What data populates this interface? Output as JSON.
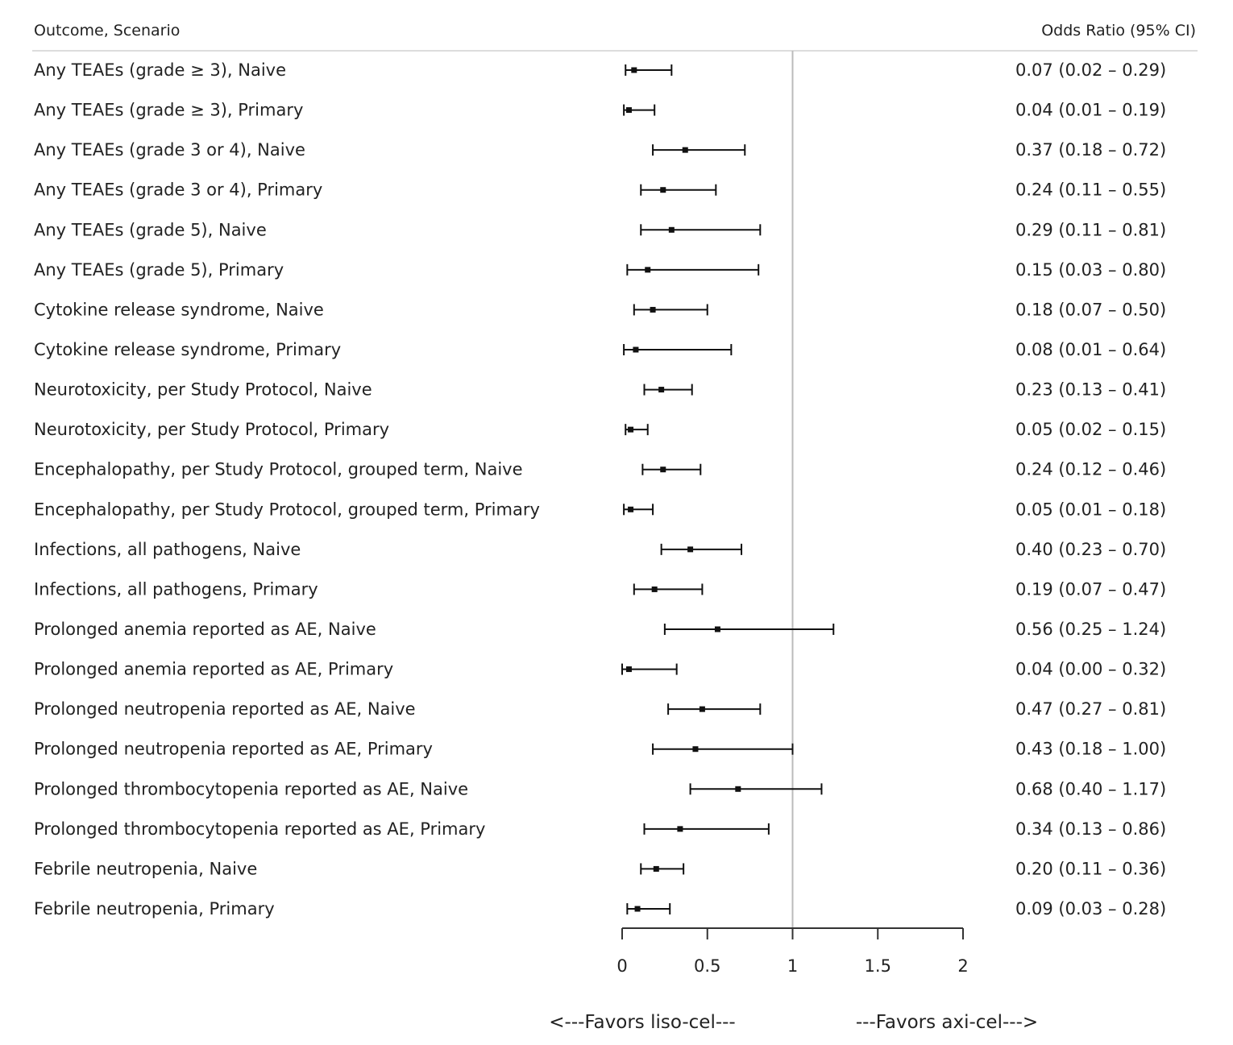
{
  "chart_data": {
    "type": "forest",
    "column_headers": {
      "left": "Outcome, Scenario",
      "right": "Odds Ratio (95% CI)"
    },
    "xlim": [
      0,
      2
    ],
    "xticks": [
      "0",
      "0.5",
      "1",
      "1.5",
      "2"
    ],
    "reference_line": 1,
    "favors": {
      "left": "<---Favors liso-cel---",
      "right": "---Favors axi-cel--->"
    },
    "rows": [
      {
        "label": "Any TEAEs (grade ≥ 3), Naive",
        "or": 0.07,
        "lo": 0.02,
        "hi": 0.29,
        "text": "0.07 (0.02 – 0.29)"
      },
      {
        "label": "Any TEAEs (grade ≥ 3), Primary",
        "or": 0.04,
        "lo": 0.01,
        "hi": 0.19,
        "text": "0.04 (0.01 – 0.19)"
      },
      {
        "label": "Any TEAEs (grade 3 or 4), Naive",
        "or": 0.37,
        "lo": 0.18,
        "hi": 0.72,
        "text": "0.37 (0.18 – 0.72)"
      },
      {
        "label": "Any TEAEs (grade 3 or 4), Primary",
        "or": 0.24,
        "lo": 0.11,
        "hi": 0.55,
        "text": "0.24 (0.11 – 0.55)"
      },
      {
        "label": "Any TEAEs (grade 5), Naive",
        "or": 0.29,
        "lo": 0.11,
        "hi": 0.81,
        "text": "0.29 (0.11 – 0.81)"
      },
      {
        "label": "Any TEAEs (grade 5), Primary",
        "or": 0.15,
        "lo": 0.03,
        "hi": 0.8,
        "text": "0.15 (0.03 – 0.80)"
      },
      {
        "label": "Cytokine release syndrome, Naive",
        "or": 0.18,
        "lo": 0.07,
        "hi": 0.5,
        "text": "0.18 (0.07 – 0.50)"
      },
      {
        "label": "Cytokine release syndrome, Primary",
        "or": 0.08,
        "lo": 0.01,
        "hi": 0.64,
        "text": "0.08 (0.01 – 0.64)"
      },
      {
        "label": "Neurotoxicity, per Study Protocol, Naive",
        "or": 0.23,
        "lo": 0.13,
        "hi": 0.41,
        "text": "0.23 (0.13 – 0.41)"
      },
      {
        "label": "Neurotoxicity, per Study Protocol, Primary",
        "or": 0.05,
        "lo": 0.02,
        "hi": 0.15,
        "text": "0.05 (0.02 – 0.15)"
      },
      {
        "label": "Encephalopathy, per Study Protocol, grouped term, Naive",
        "or": 0.24,
        "lo": 0.12,
        "hi": 0.46,
        "text": "0.24 (0.12 – 0.46)"
      },
      {
        "label": "Encephalopathy, per Study Protocol, grouped term, Primary",
        "or": 0.05,
        "lo": 0.01,
        "hi": 0.18,
        "text": "0.05 (0.01 – 0.18)"
      },
      {
        "label": "Infections, all pathogens, Naive",
        "or": 0.4,
        "lo": 0.23,
        "hi": 0.7,
        "text": "0.40 (0.23 – 0.70)"
      },
      {
        "label": "Infections, all pathogens, Primary",
        "or": 0.19,
        "lo": 0.07,
        "hi": 0.47,
        "text": "0.19 (0.07 – 0.47)"
      },
      {
        "label": "Prolonged anemia reported as AE, Naive",
        "or": 0.56,
        "lo": 0.25,
        "hi": 1.24,
        "text": "0.56 (0.25 – 1.24)"
      },
      {
        "label": "Prolonged anemia reported as AE, Primary",
        "or": 0.04,
        "lo": 0.0,
        "hi": 0.32,
        "text": "0.04 (0.00 – 0.32)"
      },
      {
        "label": "Prolonged neutropenia reported as AE, Naive",
        "or": 0.47,
        "lo": 0.27,
        "hi": 0.81,
        "text": "0.47 (0.27 – 0.81)"
      },
      {
        "label": "Prolonged neutropenia reported as AE, Primary",
        "or": 0.43,
        "lo": 0.18,
        "hi": 1.0,
        "text": "0.43 (0.18 – 1.00)"
      },
      {
        "label": "Prolonged thrombocytopenia reported as AE, Naive",
        "or": 0.68,
        "lo": 0.4,
        "hi": 1.17,
        "text": "0.68 (0.40 – 1.17)"
      },
      {
        "label": "Prolonged thrombocytopenia reported as AE, Primary",
        "or": 0.34,
        "lo": 0.13,
        "hi": 0.86,
        "text": "0.34 (0.13 – 0.86)"
      },
      {
        "label": "Febrile neutropenia, Naive",
        "or": 0.2,
        "lo": 0.11,
        "hi": 0.36,
        "text": "0.20 (0.11 – 0.36)"
      },
      {
        "label": "Febrile neutropenia, Primary",
        "or": 0.09,
        "lo": 0.03,
        "hi": 0.28,
        "text": "0.09 (0.03 – 0.28)"
      }
    ],
    "colors": {
      "marks": "#111111",
      "reference_line": "#bbbbbb",
      "separator": "#dddddd"
    }
  }
}
